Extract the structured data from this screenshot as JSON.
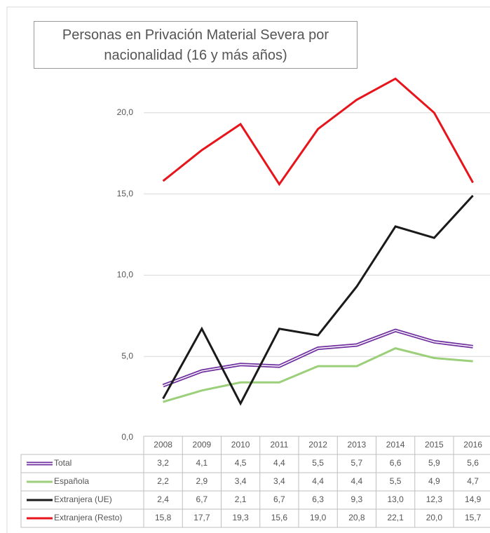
{
  "chart_data": {
    "type": "line",
    "title": "Personas  en Privación Material Severa por nacionalidad (16 y más años)",
    "categories": [
      "2008",
      "2009",
      "2010",
      "2011",
      "2012",
      "2013",
      "2014",
      "2015",
      "2016"
    ],
    "series": [
      {
        "name": "Total",
        "color": "#7030a0",
        "values": [
          3.2,
          4.1,
          4.5,
          4.4,
          5.5,
          5.7,
          6.6,
          5.9,
          5.6
        ],
        "value_labels": [
          "3,2",
          "4,1",
          "4,5",
          "4,4",
          "5,5",
          "5,7",
          "6,6",
          "5,9",
          "5,6"
        ]
      },
      {
        "name": "Española",
        "color": "#9bcf7a",
        "values": [
          2.2,
          2.9,
          3.4,
          3.4,
          4.4,
          4.4,
          5.5,
          4.9,
          4.7
        ],
        "value_labels": [
          "2,2",
          "2,9",
          "3,4",
          "3,4",
          "4,4",
          "4,4",
          "5,5",
          "4,9",
          "4,7"
        ]
      },
      {
        "name": "Extranjera (UE)",
        "color": "#1a1a1a",
        "values": [
          2.4,
          6.7,
          2.1,
          6.7,
          6.3,
          9.3,
          13.0,
          12.3,
          14.9
        ],
        "value_labels": [
          "2,4",
          "6,7",
          "2,1",
          "6,7",
          "6,3",
          "9,3",
          "13,0",
          "12,3",
          "14,9"
        ]
      },
      {
        "name": "Extranjera (Resto)",
        "color": "#e8141b",
        "values": [
          15.8,
          17.7,
          19.3,
          15.6,
          19.0,
          20.8,
          22.1,
          20.0,
          15.7
        ],
        "value_labels": [
          "15,8",
          "17,7",
          "19,3",
          "15,6",
          "19,0",
          "20,8",
          "22,1",
          "20,0",
          "15,7"
        ]
      }
    ],
    "ylim": [
      0,
      25
    ],
    "yticks": [
      {
        "value": 0,
        "label": "0,0"
      },
      {
        "value": 5,
        "label": "5,0"
      },
      {
        "value": 10,
        "label": "10,0"
      },
      {
        "value": 15,
        "label": "15,0"
      },
      {
        "value": 20,
        "label": "20,0"
      }
    ],
    "grid": true
  }
}
